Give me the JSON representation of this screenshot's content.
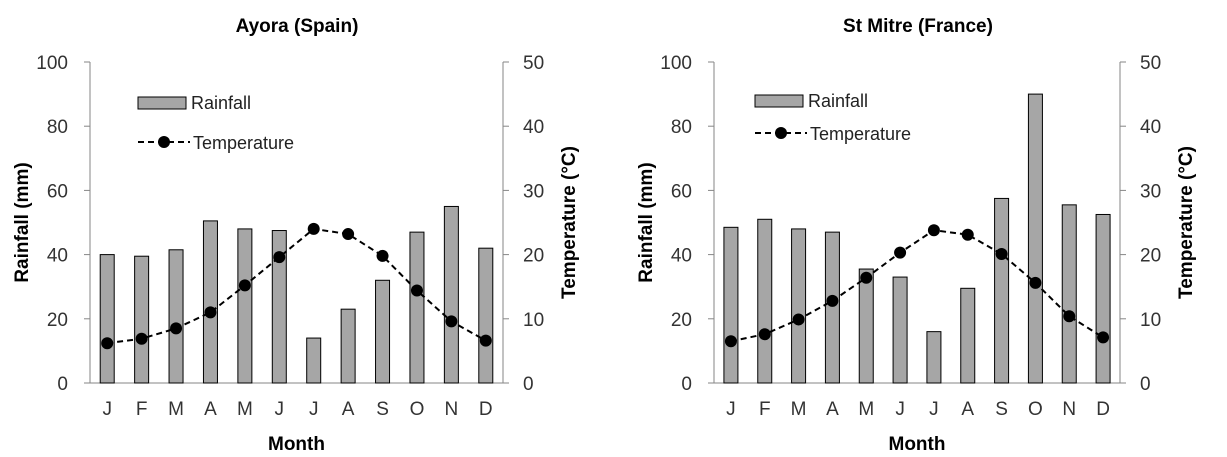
{
  "chart_data": [
    {
      "type": "bar",
      "title": "Ayora (Spain)",
      "xlabel": "Month",
      "ylabel": "Rainfall (mm)",
      "y2label": "Temperature (°C)",
      "categories": [
        "J",
        "F",
        "M",
        "A",
        "M",
        "J",
        "J",
        "A",
        "S",
        "O",
        "N",
        "D"
      ],
      "ylim": [
        0,
        100
      ],
      "y2lim": [
        0,
        50
      ],
      "yticks": [
        0,
        20,
        40,
        60,
        80,
        100
      ],
      "y2ticks": [
        0,
        10,
        20,
        30,
        40,
        50
      ],
      "legend_position": "top-left",
      "grid": false,
      "series": [
        {
          "name": "Rainfall",
          "type": "bar",
          "axis": "left",
          "color": "#a6a6a6",
          "values": [
            40,
            39.5,
            41.5,
            50.5,
            48,
            47.5,
            14,
            23,
            32,
            47,
            55,
            42
          ]
        },
        {
          "name": "Temperature",
          "type": "line",
          "axis": "right",
          "color": "#000000",
          "line_style": "dashed",
          "values": [
            6.2,
            6.9,
            8.5,
            11.0,
            15.2,
            19.6,
            24.0,
            23.2,
            19.8,
            14.4,
            9.6,
            6.6
          ]
        }
      ]
    },
    {
      "type": "bar",
      "title": "St Mitre  (France)",
      "xlabel": "Month",
      "ylabel": "Rainfall (mm)",
      "y2label": "Temperature (°C)",
      "categories": [
        "J",
        "F",
        "M",
        "A",
        "M",
        "J",
        "J",
        "A",
        "S",
        "O",
        "N",
        "D"
      ],
      "ylim": [
        0,
        100
      ],
      "y2lim": [
        0,
        50
      ],
      "yticks": [
        0,
        20,
        40,
        60,
        80,
        100
      ],
      "y2ticks": [
        0,
        10,
        20,
        30,
        40,
        50
      ],
      "legend_position": "top-left",
      "grid": false,
      "series": [
        {
          "name": "Rainfall",
          "type": "bar",
          "axis": "left",
          "color": "#a6a6a6",
          "values": [
            48.5,
            51,
            48,
            47,
            35.5,
            33,
            16,
            29.5,
            57.5,
            90,
            55.5,
            52.5
          ]
        },
        {
          "name": "Temperature",
          "type": "line",
          "axis": "right",
          "color": "#000000",
          "line_style": "dashed",
          "values": [
            6.5,
            7.6,
            9.9,
            12.8,
            16.4,
            20.3,
            23.8,
            23.1,
            20.1,
            15.6,
            10.4,
            7.1
          ]
        }
      ]
    }
  ]
}
